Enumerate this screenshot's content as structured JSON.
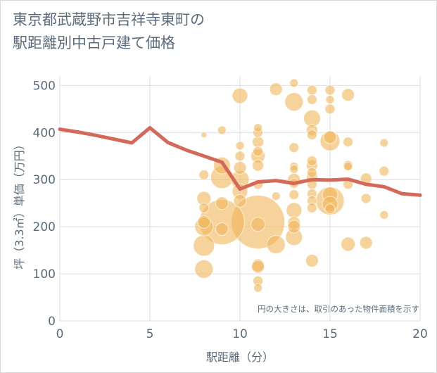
{
  "chart_data": {
    "type": "scatter",
    "title": "東京都武蔵野市吉祥寺東町の\n駅距離別中古戸建て価格",
    "xlabel": "駅距離（分）",
    "ylabel": "坪（3.3㎡）単価（万円）",
    "note": "円の大きさは、取引のあった物件面積を示す",
    "xlim": [
      0,
      20
    ],
    "ylim": [
      0,
      520
    ],
    "x_ticks": [
      0,
      5,
      10,
      15,
      20
    ],
    "y_ticks": [
      0,
      100,
      200,
      300,
      400,
      500
    ],
    "grid": true,
    "colors": {
      "bubble": "#f2b65a",
      "line": "#d4695a",
      "grid": "#d9dee6",
      "text": "#5b6b7b"
    },
    "series": [
      {
        "kind": "bubble",
        "points": [
          {
            "x": 8,
            "y": 395,
            "s": 4
          },
          {
            "x": 8,
            "y": 310,
            "s": 7
          },
          {
            "x": 8,
            "y": 260,
            "s": 10
          },
          {
            "x": 8,
            "y": 240,
            "s": 7
          },
          {
            "x": 8,
            "y": 210,
            "s": 9
          },
          {
            "x": 8,
            "y": 200,
            "s": 13
          },
          {
            "x": 8,
            "y": 160,
            "s": 15
          },
          {
            "x": 8,
            "y": 110,
            "s": 13
          },
          {
            "x": 9,
            "y": 405,
            "s": 6
          },
          {
            "x": 9,
            "y": 330,
            "s": 12
          },
          {
            "x": 9,
            "y": 305,
            "s": 16
          },
          {
            "x": 9,
            "y": 250,
            "s": 9
          },
          {
            "x": 9,
            "y": 210,
            "s": 32
          },
          {
            "x": 9,
            "y": 195,
            "s": 9
          },
          {
            "x": 10,
            "y": 478,
            "s": 11
          },
          {
            "x": 10,
            "y": 372,
            "s": 6
          },
          {
            "x": 10,
            "y": 350,
            "s": 7
          },
          {
            "x": 10,
            "y": 325,
            "s": 9
          },
          {
            "x": 10,
            "y": 300,
            "s": 13
          },
          {
            "x": 10,
            "y": 275,
            "s": 11
          },
          {
            "x": 10,
            "y": 255,
            "s": 9
          },
          {
            "x": 11,
            "y": 410,
            "s": 6
          },
          {
            "x": 11,
            "y": 400,
            "s": 7
          },
          {
            "x": 11,
            "y": 380,
            "s": 8
          },
          {
            "x": 11,
            "y": 360,
            "s": 7
          },
          {
            "x": 11,
            "y": 350,
            "s": 10
          },
          {
            "x": 11,
            "y": 330,
            "s": 8
          },
          {
            "x": 11,
            "y": 290,
            "s": 7
          },
          {
            "x": 11,
            "y": 210,
            "s": 38
          },
          {
            "x": 11,
            "y": 205,
            "s": 10
          },
          {
            "x": 11,
            "y": 118,
            "s": 9
          },
          {
            "x": 11,
            "y": 115,
            "s": 9
          },
          {
            "x": 11,
            "y": 85,
            "s": 7
          },
          {
            "x": 11,
            "y": 70,
            "s": 6
          },
          {
            "x": 12,
            "y": 492,
            "s": 9
          },
          {
            "x": 12,
            "y": 265,
            "s": 6
          },
          {
            "x": 12,
            "y": 162,
            "s": 13
          },
          {
            "x": 13,
            "y": 505,
            "s": 6
          },
          {
            "x": 13,
            "y": 465,
            "s": 13
          },
          {
            "x": 13,
            "y": 368,
            "s": 7
          },
          {
            "x": 13,
            "y": 328,
            "s": 6
          },
          {
            "x": 13,
            "y": 322,
            "s": 6
          },
          {
            "x": 13,
            "y": 300,
            "s": 9
          },
          {
            "x": 13,
            "y": 292,
            "s": 7
          },
          {
            "x": 13,
            "y": 268,
            "s": 7
          },
          {
            "x": 13,
            "y": 235,
            "s": 11
          },
          {
            "x": 13,
            "y": 208,
            "s": 9
          },
          {
            "x": 13,
            "y": 200,
            "s": 9
          },
          {
            "x": 13,
            "y": 178,
            "s": 12
          },
          {
            "x": 14,
            "y": 490,
            "s": 7
          },
          {
            "x": 14,
            "y": 470,
            "s": 7
          },
          {
            "x": 14,
            "y": 430,
            "s": 12
          },
          {
            "x": 14,
            "y": 405,
            "s": 8
          },
          {
            "x": 14,
            "y": 395,
            "s": 7
          },
          {
            "x": 14,
            "y": 340,
            "s": 7
          },
          {
            "x": 14,
            "y": 330,
            "s": 8
          },
          {
            "x": 14,
            "y": 315,
            "s": 7
          },
          {
            "x": 14,
            "y": 305,
            "s": 8
          },
          {
            "x": 14,
            "y": 290,
            "s": 7
          },
          {
            "x": 14,
            "y": 270,
            "s": 7
          },
          {
            "x": 14,
            "y": 255,
            "s": 7
          },
          {
            "x": 14,
            "y": 240,
            "s": 7
          },
          {
            "x": 14,
            "y": 128,
            "s": 9
          },
          {
            "x": 15,
            "y": 490,
            "s": 7
          },
          {
            "x": 15,
            "y": 470,
            "s": 6
          },
          {
            "x": 15,
            "y": 450,
            "s": 7
          },
          {
            "x": 15,
            "y": 390,
            "s": 9
          },
          {
            "x": 15,
            "y": 382,
            "s": 14
          },
          {
            "x": 15,
            "y": 268,
            "s": 11
          },
          {
            "x": 15,
            "y": 255,
            "s": 20
          },
          {
            "x": 15,
            "y": 248,
            "s": 11
          },
          {
            "x": 15,
            "y": 238,
            "s": 7
          },
          {
            "x": 16,
            "y": 480,
            "s": 9
          },
          {
            "x": 16,
            "y": 380,
            "s": 7
          },
          {
            "x": 16,
            "y": 330,
            "s": 7
          },
          {
            "x": 16,
            "y": 328,
            "s": 6
          },
          {
            "x": 16,
            "y": 290,
            "s": 7
          },
          {
            "x": 16,
            "y": 163,
            "s": 10
          },
          {
            "x": 17,
            "y": 302,
            "s": 8
          },
          {
            "x": 17,
            "y": 260,
            "s": 7
          },
          {
            "x": 17,
            "y": 166,
            "s": 9
          },
          {
            "x": 18,
            "y": 378,
            "s": 6
          },
          {
            "x": 18,
            "y": 318,
            "s": 7
          },
          {
            "x": 18,
            "y": 225,
            "s": 6
          }
        ]
      },
      {
        "kind": "line",
        "x": [
          0,
          1,
          2,
          3,
          4,
          5,
          6,
          7,
          8,
          9,
          10,
          11,
          12,
          13,
          14,
          15,
          16,
          17,
          18,
          19,
          20
        ],
        "y": [
          407,
          401,
          394,
          386,
          378,
          410,
          379,
          363,
          350,
          337,
          280,
          295,
          298,
          292,
          300,
          299,
          301,
          290,
          285,
          270,
          267
        ]
      }
    ]
  }
}
